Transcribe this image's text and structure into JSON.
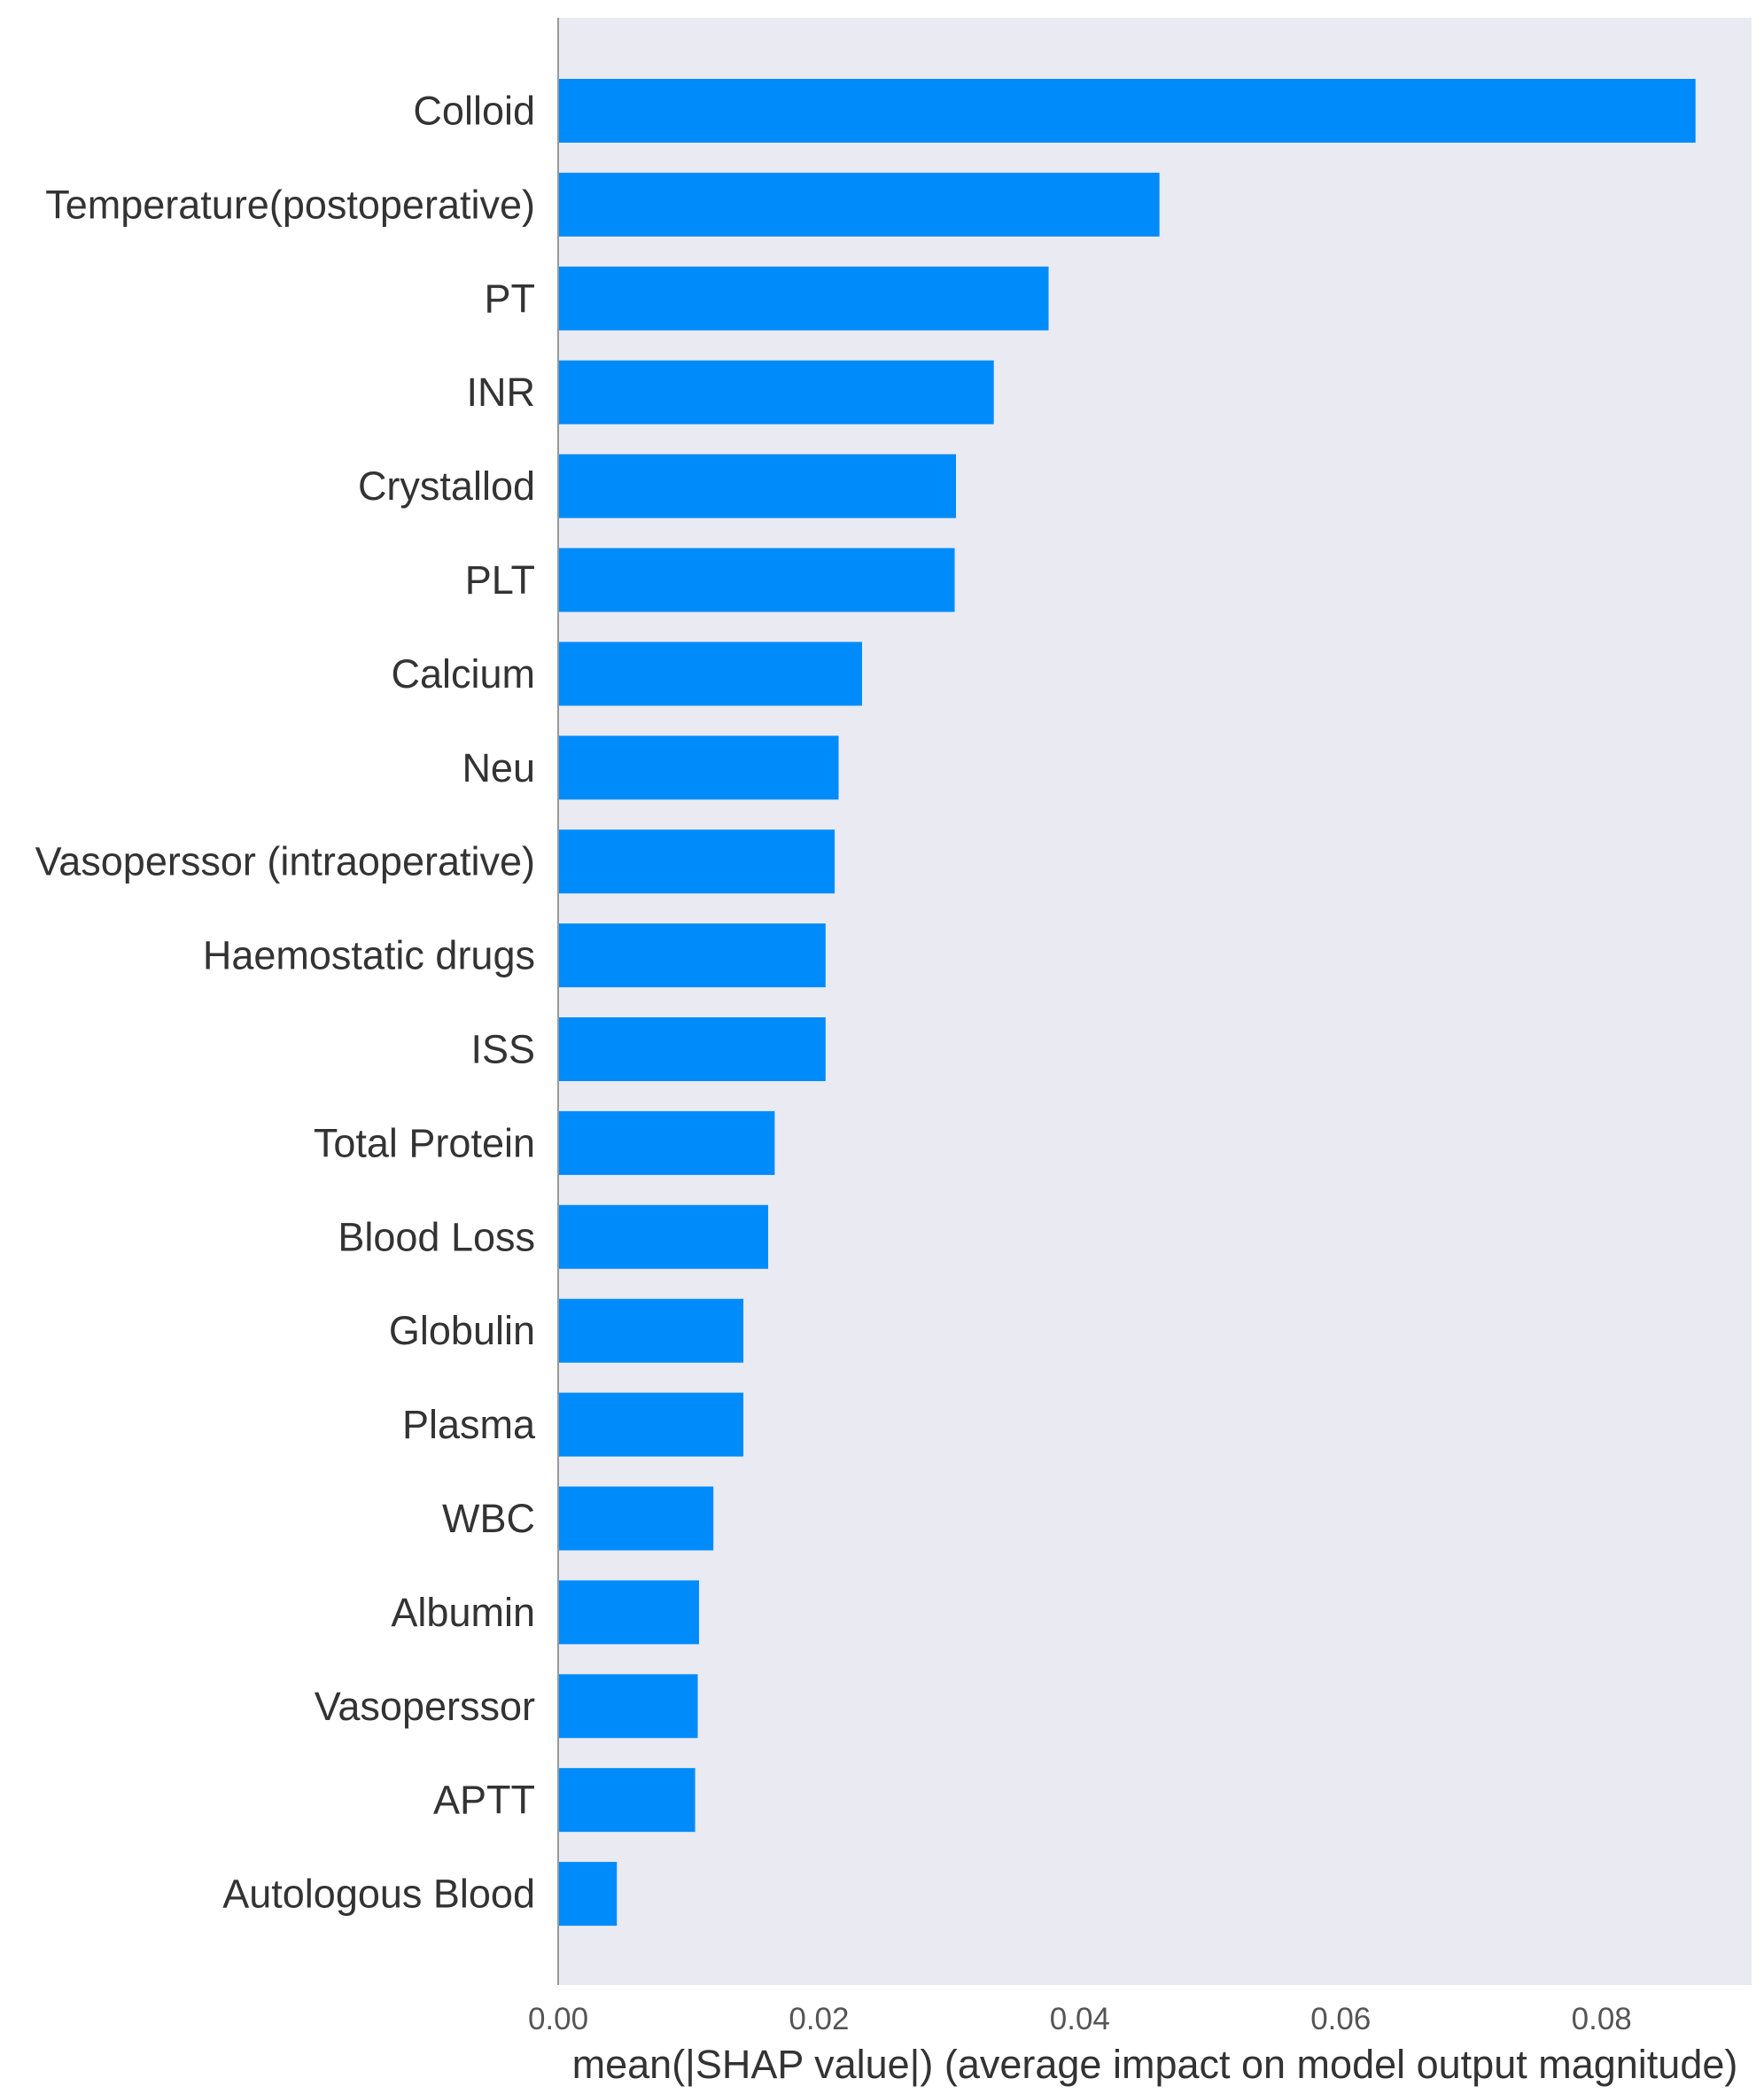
{
  "chart_data": {
    "type": "bar",
    "orientation": "horizontal",
    "title": "",
    "xlabel": "mean(|SHAP value|) (average impact on model output magnitude)",
    "ylabel": "",
    "xlim": [
      0,
      0.0915
    ],
    "xticks": [
      0.0,
      0.02,
      0.04,
      0.06,
      0.08
    ],
    "xtick_labels": [
      "0.00",
      "0.02",
      "0.04",
      "0.06",
      "0.08"
    ],
    "grid": false,
    "legend": "none",
    "categories": [
      "Colloid",
      "Temperature(postoperative)",
      "PT",
      "INR",
      "Crystallod",
      "PLT",
      "Calcium",
      "Neu",
      "Vasoperssor (intraoperative)",
      "Haemostatic drugs",
      "ISS",
      "Total Protein",
      "Blood Loss",
      "Globulin",
      "Plasma",
      "WBC",
      "Albumin",
      "Vasoperssor",
      "APTT",
      "Autologous Blood"
    ],
    "values": [
      0.0872,
      0.0461,
      0.0376,
      0.0334,
      0.0305,
      0.0304,
      0.0233,
      0.0215,
      0.0212,
      0.0205,
      0.0205,
      0.0166,
      0.0161,
      0.0142,
      0.0142,
      0.0119,
      0.0108,
      0.0107,
      0.0105,
      0.0045
    ],
    "colors": {
      "bar": "#008bfb",
      "plot_background": "#eaeaf2",
      "axis_line": "#999999",
      "text": "#333333"
    }
  }
}
